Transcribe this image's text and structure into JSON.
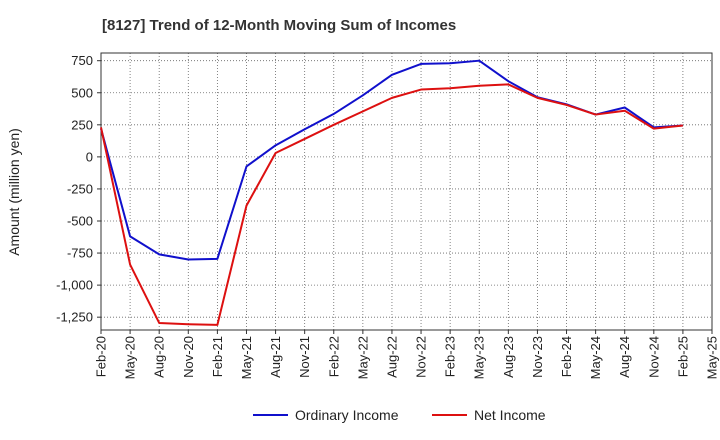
{
  "chart_data": {
    "type": "line",
    "title": "[8127]  Trend of 12-Month Moving Sum of Incomes",
    "xlabel": "",
    "ylabel": "Amount (million yen)",
    "ylim": [
      -1350,
      810
    ],
    "yticks": [
      750,
      500,
      250,
      0,
      -250,
      -500,
      -750,
      -1000,
      -1250
    ],
    "ytick_labels": [
      "750",
      "500",
      "250",
      "0",
      "-250",
      "-500",
      "-750",
      "-1,000",
      "-1,250"
    ],
    "x_tick_labels": [
      "Feb-20",
      "May-20",
      "Aug-20",
      "Nov-20",
      "Feb-21",
      "May-21",
      "Aug-21",
      "Nov-21",
      "Feb-22",
      "May-22",
      "Aug-22",
      "Nov-22",
      "Feb-23",
      "May-23",
      "Aug-23",
      "Nov-23",
      "Feb-24",
      "May-24",
      "Aug-24",
      "Nov-24",
      "Feb-25",
      "May-25"
    ],
    "grid": true,
    "legend_position": "bottom-center",
    "series": [
      {
        "name": "Ordinary Income",
        "color": "#1010cc",
        "values": [
          220,
          -620,
          -760,
          -800,
          -795,
          -75,
          90,
          215,
          335,
          480,
          640,
          725,
          730,
          750,
          590,
          465,
          410,
          330,
          385,
          230,
          245
        ]
      },
      {
        "name": "Net Income",
        "color": "#dd1010",
        "values": [
          230,
          -840,
          -1295,
          -1305,
          -1310,
          -380,
          30,
          140,
          250,
          355,
          460,
          525,
          535,
          555,
          565,
          460,
          405,
          330,
          360,
          220,
          245
        ]
      }
    ]
  }
}
